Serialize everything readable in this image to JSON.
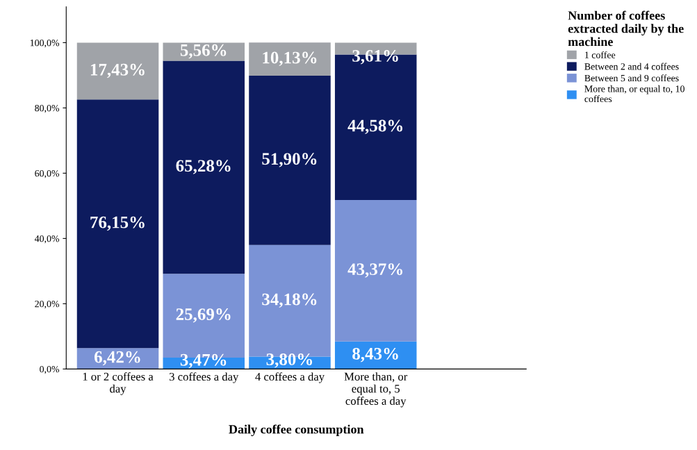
{
  "chart_data": {
    "type": "bar",
    "stacked": true,
    "xlabel": "Daily coffee consumption",
    "legend_title": "Number of coffees extracted daily by the machine",
    "categories": [
      "1 or 2 coffees a day",
      "3 coffees a day",
      "4 coffees a day",
      "More than, or equal to, 5 coffees a day"
    ],
    "series": [
      {
        "name": "More than, or equal to, 10 coffees",
        "color": "#2e8ff2",
        "values": [
          null,
          3.47,
          3.8,
          8.43
        ],
        "value_labels": [
          null,
          "3,47%",
          "3,80%",
          "8,43%"
        ]
      },
      {
        "name": "Between 5 and 9 coffees",
        "color": "#7b93d6",
        "values": [
          6.42,
          25.69,
          34.18,
          43.37
        ],
        "value_labels": [
          "6,42%",
          "25,69%",
          "34,18%",
          "43,37%"
        ]
      },
      {
        "name": "Between 2 and 4 coffees",
        "color": "#0d1b5e",
        "values": [
          76.15,
          65.28,
          51.9,
          44.58
        ],
        "value_labels": [
          "76,15%",
          "65,28%",
          "51,90%",
          "44,58%"
        ]
      },
      {
        "name": "1 coffee",
        "color": "#a0a3a8",
        "values": [
          17.43,
          5.56,
          10.13,
          3.61
        ],
        "value_labels": [
          "17,43%",
          "5,56%",
          "10,13%",
          "3,61%"
        ]
      }
    ],
    "ylim": [
      0,
      111
    ],
    "yticks": [
      {
        "value": 0,
        "label": "0,0%"
      },
      {
        "value": 20,
        "label": "20,0%"
      },
      {
        "value": 40,
        "label": "40,0%"
      },
      {
        "value": 60,
        "label": "60,0%"
      },
      {
        "value": 80,
        "label": "80,0%"
      },
      {
        "value": 100,
        "label": "100,0%"
      }
    ],
    "grid": false,
    "legend": "top right"
  }
}
